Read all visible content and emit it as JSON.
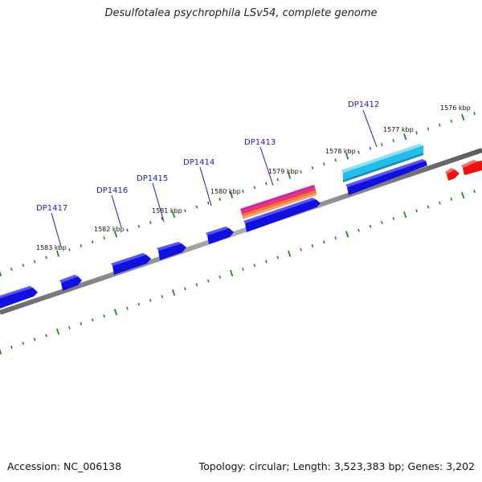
{
  "title": "Desulfotalea psychrophila LSv54, complete genome",
  "footer": {
    "accession": "Accession: NC_006138",
    "stats": "Topology: circular; Length: 3,523,383 bp; Genes: 3,202"
  },
  "kbp_labels": [
    "1576 kbp",
    "1577 kbp",
    "1578 kbp",
    "1579 kbp",
    "1580 kbp",
    "1581 kbp",
    "1582 kbp",
    "1583 kbp"
  ],
  "gene_labels": [
    "DP1412",
    "DP1413",
    "DP1414",
    "DP1415",
    "DP1416",
    "DP1417"
  ],
  "colors": {
    "gene_blue": "#1010e0",
    "highlight_cyan": "#22bde8",
    "highlight_stripes": [
      "#cc22aa",
      "#ee3366",
      "#f07a30",
      "#f0a070"
    ],
    "rna_red": "#ee1111",
    "backbone": "#888888",
    "tick_green": "#228822",
    "label_blue": "#1a1acc"
  }
}
